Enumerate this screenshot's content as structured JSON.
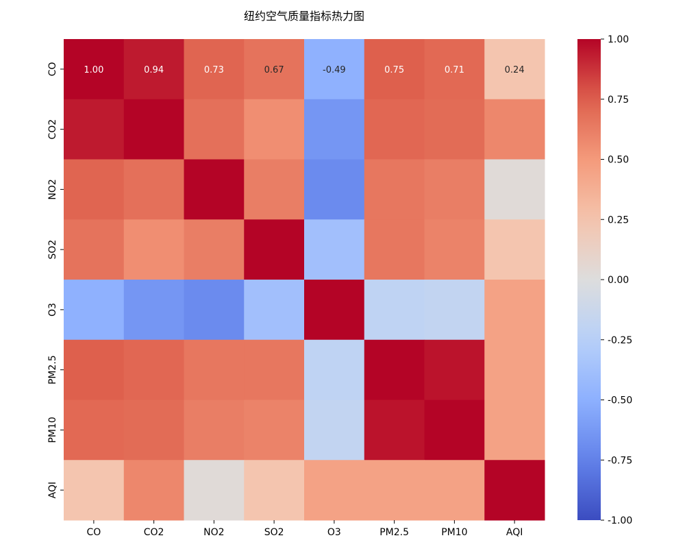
{
  "chart_data": {
    "type": "heatmap",
    "title": "纽约空气质量指标热力图",
    "rows": [
      "CO",
      "CO2",
      "NO2",
      "SO2",
      "O3",
      "PM2.5",
      "PM10",
      "AQI"
    ],
    "cols": [
      "CO",
      "CO2",
      "NO2",
      "SO2",
      "O3",
      "PM2.5",
      "PM10",
      "AQI"
    ],
    "values": [
      [
        1.0,
        0.94,
        0.73,
        0.67,
        -0.49,
        0.75,
        0.71,
        0.24
      ],
      [
        0.94,
        1.0,
        0.68,
        0.55,
        -0.64,
        0.72,
        0.7,
        0.58
      ],
      [
        0.73,
        0.68,
        1.0,
        0.62,
        -0.7,
        0.65,
        0.62,
        0.03
      ],
      [
        0.67,
        0.55,
        0.62,
        1.0,
        -0.38,
        0.65,
        0.6,
        0.24
      ],
      [
        -0.49,
        -0.64,
        -0.7,
        -0.38,
        1.0,
        -0.2,
        -0.18,
        0.45
      ],
      [
        0.75,
        0.72,
        0.65,
        0.65,
        -0.2,
        1.0,
        0.96,
        0.45
      ],
      [
        0.71,
        0.7,
        0.62,
        0.6,
        -0.18,
        0.96,
        1.0,
        0.45
      ],
      [
        0.24,
        0.58,
        0.03,
        0.24,
        0.45,
        0.45,
        0.45,
        1.0
      ]
    ],
    "annotated_row_labels": [
      "1.00",
      "0.94",
      "0.73",
      "0.67",
      "-0.49",
      "0.75",
      "0.71",
      "0.24"
    ],
    "colormap": "coolwarm",
    "vmin": -1.0,
    "vmax": 1.0,
    "colorbar_ticks": [
      "1.00",
      "0.75",
      "0.50",
      "0.25",
      "0.00",
      "-0.25",
      "-0.50",
      "-0.75",
      "-1.00"
    ],
    "colorbar_tick_values": [
      1.0,
      0.75,
      0.5,
      0.25,
      0.0,
      -0.25,
      -0.5,
      -0.75,
      -1.0
    ],
    "colorbar_position": "right"
  }
}
